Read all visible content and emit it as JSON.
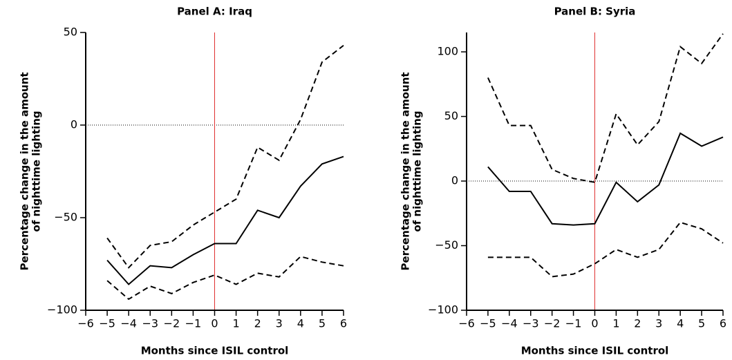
{
  "chart_data": [
    {
      "type": "line",
      "title": "Panel A: Iraq",
      "xlabel": "Months since ISIL control",
      "ylabel": [
        "Percentage change in the amount",
        "of nighttime lighting"
      ],
      "x": [
        -5,
        -4,
        -3,
        -2,
        -1,
        0,
        1,
        2,
        3,
        4,
        5,
        6
      ],
      "series": [
        {
          "style": "dashed",
          "color": "#000000",
          "values": [
            -61,
            -77,
            -65,
            -63,
            -54,
            -47,
            -40,
            -12,
            -19,
            3,
            34,
            43
          ]
        },
        {
          "style": "solid",
          "color": "#000000",
          "values": [
            -73,
            -86,
            -76,
            -77,
            -70,
            -64,
            -64,
            -46,
            -50,
            -33,
            -21,
            -17
          ]
        },
        {
          "style": "dashed",
          "color": "#000000",
          "values": [
            -84,
            -94,
            -87,
            -91,
            -85,
            -81,
            -86,
            -80,
            -82,
            -71,
            -74,
            -76
          ]
        }
      ],
      "xlim": [
        -6,
        6
      ],
      "xticks": [
        {
          "value": -6,
          "label": "−6"
        },
        {
          "value": -5,
          "label": "−5"
        },
        {
          "value": -4,
          "label": "−4"
        },
        {
          "value": -3,
          "label": "−3"
        },
        {
          "value": -2,
          "label": "−2"
        },
        {
          "value": -1,
          "label": "−1"
        },
        0,
        1,
        2,
        3,
        4,
        5,
        6
      ],
      "ylim": [
        -100,
        50
      ],
      "yticks": [
        {
          "value": -100,
          "label": "−100"
        },
        {
          "value": -50,
          "label": "−50"
        },
        0,
        50
      ],
      "vline": 0,
      "vline_color": "#e03030",
      "hline": 0
    },
    {
      "type": "line",
      "title": "Panel B: Syria",
      "xlabel": "Months since ISIL control",
      "ylabel": [
        "Percentage change in the amount",
        "of nighttime lighting"
      ],
      "x": [
        -5,
        -4,
        -3,
        -2,
        -1,
        0,
        1,
        2,
        3,
        4,
        5,
        6
      ],
      "series": [
        {
          "style": "dashed",
          "color": "#000000",
          "values": [
            80,
            43,
            43,
            9,
            2,
            -1,
            52,
            28,
            46,
            104,
            91,
            114
          ]
        },
        {
          "style": "solid",
          "color": "#000000",
          "values": [
            11,
            -8,
            -8,
            -33,
            -34,
            -33,
            -1,
            -16,
            -3,
            37,
            27,
            34
          ]
        },
        {
          "style": "dashed",
          "color": "#000000",
          "values": [
            -59,
            -59,
            -59,
            -74,
            -72,
            -64,
            -53,
            -59,
            -53,
            -32,
            -37,
            -48
          ]
        }
      ],
      "xlim": [
        -6,
        6
      ],
      "xticks": [
        {
          "value": -6,
          "label": "−6"
        },
        {
          "value": -5,
          "label": "−5"
        },
        {
          "value": -4,
          "label": "−4"
        },
        {
          "value": -3,
          "label": "−3"
        },
        {
          "value": -2,
          "label": "−2"
        },
        {
          "value": -1,
          "label": "−1"
        },
        0,
        1,
        2,
        3,
        4,
        5,
        6
      ],
      "ylim": [
        -100,
        115
      ],
      "yticks": [
        {
          "value": -100,
          "label": "−100"
        },
        {
          "value": -50,
          "label": "−50"
        },
        0,
        50,
        100
      ],
      "vline": 0,
      "vline_color": "#e03030",
      "hline": 0
    }
  ]
}
